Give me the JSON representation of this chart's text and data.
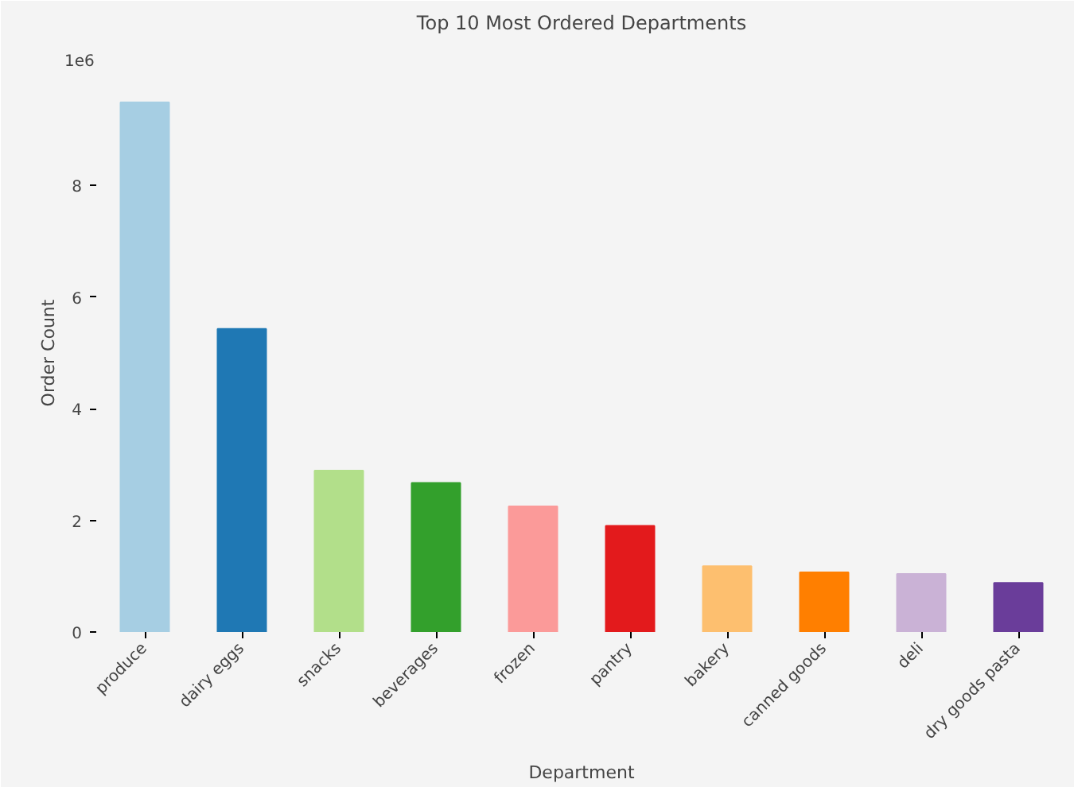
{
  "chart_data": {
    "type": "bar",
    "title": "Top 10 Most Ordered Departments",
    "xlabel": "Department",
    "ylabel": "Order Count",
    "categories": [
      "produce",
      "dairy eggs",
      "snacks",
      "beverages",
      "frozen",
      "pantry",
      "bakery",
      "canned goods",
      "deli",
      "dry goods pasta"
    ],
    "values": [
      9.49,
      5.43,
      2.89,
      2.67,
      2.25,
      1.9,
      1.18,
      1.07,
      1.04,
      0.88
    ],
    "colors": [
      "#a6cee3",
      "#1f78b4",
      "#b2df8a",
      "#33a02c",
      "#fb9a99",
      "#e31a1c",
      "#fdbf6f",
      "#ff7f00",
      "#cab2d6",
      "#6a3d9a"
    ],
    "ylim": [
      0,
      10
    ],
    "yticks": [
      0,
      2,
      4,
      6,
      8
    ],
    "annotations": [
      "1e6"
    ],
    "grid": false
  }
}
